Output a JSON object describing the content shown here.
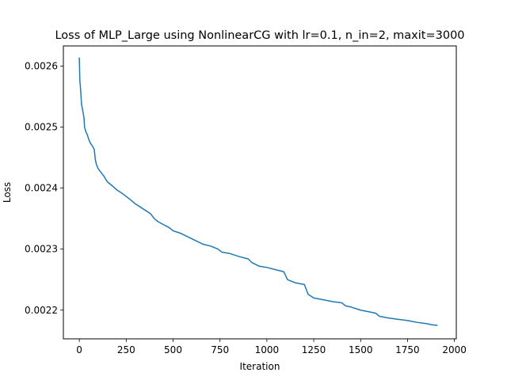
{
  "chart_data": {
    "type": "line",
    "title": "Loss of MLP_Large using NonlinearCG with lr=0.1, n_in=2, maxit=3000",
    "xlabel": "Iteration",
    "ylabel": "Loss",
    "xlim": [
      -85,
      2010
    ],
    "ylim": [
      0.002153,
      0.002633
    ],
    "xticks": [
      0,
      250,
      500,
      750,
      1000,
      1250,
      1500,
      1750,
      2000
    ],
    "xtick_labels": [
      "0",
      "250",
      "500",
      "750",
      "1000",
      "1250",
      "1500",
      "1750",
      "2000"
    ],
    "yticks": [
      0.0022,
      0.0023,
      0.0024,
      0.0025,
      0.0026
    ],
    "ytick_labels": [
      "0.0022",
      "0.0023",
      "0.0024",
      "0.0025",
      "0.0026"
    ],
    "grid": false,
    "line_color": "#1f77b4",
    "series": [
      {
        "x": [
          0,
          3,
          5,
          8,
          12,
          15,
          20,
          25,
          28,
          35,
          42,
          50,
          60,
          70,
          80,
          85,
          90,
          100,
          110,
          130,
          150,
          175,
          200,
          230,
          260,
          300,
          340,
          380,
          400,
          420,
          450,
          480,
          500,
          540,
          580,
          620,
          660,
          700,
          740,
          760,
          800,
          850,
          900,
          920,
          960,
          1000,
          1050,
          1090,
          1110,
          1150,
          1200,
          1220,
          1250,
          1300,
          1350,
          1400,
          1420,
          1450,
          1500,
          1550,
          1580,
          1600,
          1650,
          1700,
          1750,
          1800,
          1850,
          1880,
          1910
        ],
        "y": [
          0.002614,
          0.002575,
          0.002569,
          0.002556,
          0.002537,
          0.002532,
          0.002524,
          0.002515,
          0.0025,
          0.002492,
          0.002488,
          0.00248,
          0.002473,
          0.002469,
          0.002463,
          0.002447,
          0.00244,
          0.002432,
          0.002428,
          0.00242,
          0.00241,
          0.002404,
          0.002397,
          0.002391,
          0.002384,
          0.002374,
          0.002366,
          0.002358,
          0.00235,
          0.002345,
          0.00234,
          0.002335,
          0.00233,
          0.002326,
          0.00232,
          0.002314,
          0.002308,
          0.002305,
          0.0023,
          0.002295,
          0.002293,
          0.002288,
          0.002284,
          0.002278,
          0.002272,
          0.00227,
          0.002266,
          0.002263,
          0.00225,
          0.002245,
          0.002242,
          0.002226,
          0.00222,
          0.002217,
          0.002214,
          0.002212,
          0.002207,
          0.002205,
          0.0022,
          0.002197,
          0.002195,
          0.00219,
          0.002187,
          0.002185,
          0.002183,
          0.00218,
          0.002178,
          0.002176,
          0.002175
        ]
      }
    ]
  }
}
